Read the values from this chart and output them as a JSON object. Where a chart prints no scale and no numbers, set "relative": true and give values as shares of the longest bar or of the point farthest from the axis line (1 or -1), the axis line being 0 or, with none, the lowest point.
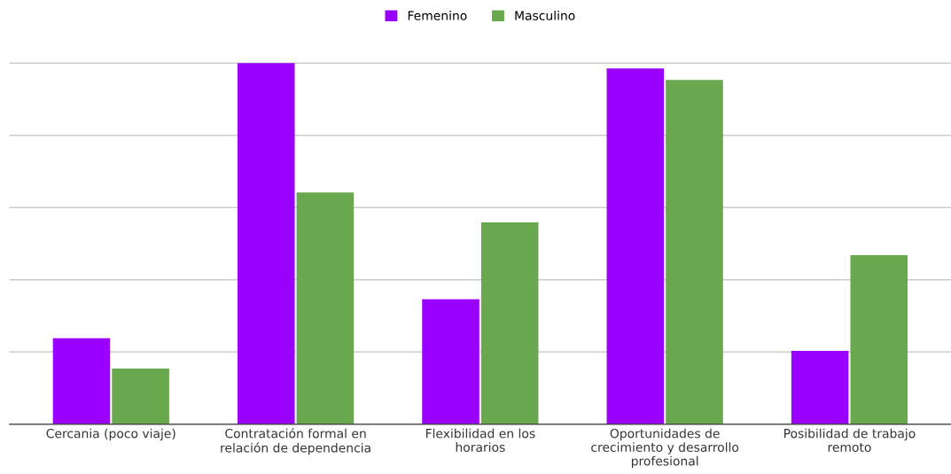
{
  "chart_data": {
    "type": "bar",
    "relative": true,
    "categories": [
      "Cercania (poco viaje)",
      "Contratación formal en relación de dependencia",
      "Flexibilidad en los horarios",
      "Oportunidades de crecimiento y desarrollo profesional",
      "Posibilidad de trabajo remoto"
    ],
    "series": [
      {
        "name": "Femenino",
        "color": "#9900ff",
        "values": [
          0.238,
          1,
          0.346,
          0.985,
          0.203
        ]
      },
      {
        "name": "Masculino",
        "color": "#6aa84f",
        "values": [
          0.154,
          0.642,
          0.559,
          0.953,
          0.468
        ]
      }
    ],
    "grid": "y",
    "legend": "top"
  }
}
